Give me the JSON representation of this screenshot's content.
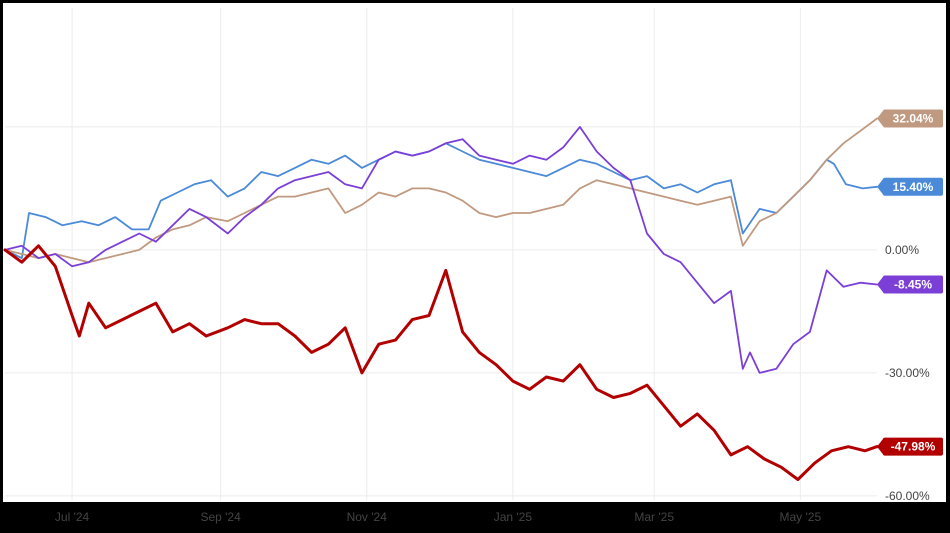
{
  "chart_data": {
    "type": "line",
    "title": "",
    "xlabel": "",
    "ylabel": "",
    "x_ticks": [
      "Jul '24",
      "Sep '24",
      "Nov '24",
      "Jan '25",
      "Mar '25",
      "May '25"
    ],
    "x_tick_dates": [
      "2024-07-01",
      "2024-09-01",
      "2024-11-01",
      "2025-01-01",
      "2025-03-01",
      "2025-05-01"
    ],
    "x_range": [
      "2024-06-03",
      "2025-06-02"
    ],
    "y_ticks": [
      {
        "value": 0,
        "label": "0.00%"
      },
      {
        "value": -30,
        "label": "-30.00%"
      },
      {
        "value": -60,
        "label": "-60.00%"
      }
    ],
    "y_range": [
      -61,
      59
    ],
    "grid": true,
    "series": [
      {
        "color": "#4a8ad9",
        "end_label": "15.40%",
        "points": [
          [
            "2024-06-03",
            0
          ],
          [
            "2024-06-10",
            -2
          ],
          [
            "2024-06-13",
            9
          ],
          [
            "2024-06-20",
            8
          ],
          [
            "2024-06-27",
            6
          ],
          [
            "2024-07-05",
            7
          ],
          [
            "2024-07-12",
            6
          ],
          [
            "2024-07-19",
            8
          ],
          [
            "2024-07-26",
            5
          ],
          [
            "2024-08-02",
            5
          ],
          [
            "2024-08-07",
            12
          ],
          [
            "2024-08-14",
            14
          ],
          [
            "2024-08-21",
            16
          ],
          [
            "2024-08-28",
            17
          ],
          [
            "2024-09-04",
            13
          ],
          [
            "2024-09-11",
            15
          ],
          [
            "2024-09-18",
            19
          ],
          [
            "2024-09-25",
            18
          ],
          [
            "2024-10-02",
            20
          ],
          [
            "2024-10-09",
            22
          ],
          [
            "2024-10-16",
            21
          ],
          [
            "2024-10-23",
            23
          ],
          [
            "2024-10-30",
            20
          ],
          [
            "2024-11-06",
            22
          ],
          [
            "2024-11-13",
            24
          ],
          [
            "2024-11-20",
            23
          ],
          [
            "2024-11-27",
            24
          ],
          [
            "2024-12-04",
            26
          ],
          [
            "2024-12-11",
            24
          ],
          [
            "2024-12-18",
            22
          ],
          [
            "2024-12-25",
            21
          ],
          [
            "2025-01-01",
            20
          ],
          [
            "2025-01-08",
            19
          ],
          [
            "2025-01-15",
            18
          ],
          [
            "2025-01-22",
            20
          ],
          [
            "2025-01-29",
            22
          ],
          [
            "2025-02-05",
            21
          ],
          [
            "2025-02-12",
            19
          ],
          [
            "2025-02-19",
            17
          ],
          [
            "2025-02-26",
            18
          ],
          [
            "2025-03-05",
            15
          ],
          [
            "2025-03-12",
            16
          ],
          [
            "2025-03-19",
            14
          ],
          [
            "2025-03-26",
            16
          ],
          [
            "2025-04-02",
            17
          ],
          [
            "2025-04-07",
            4
          ],
          [
            "2025-04-14",
            10
          ],
          [
            "2025-04-21",
            9
          ],
          [
            "2025-04-28",
            13
          ],
          [
            "2025-05-05",
            17
          ],
          [
            "2025-05-12",
            22
          ],
          [
            "2025-05-15",
            21
          ],
          [
            "2025-05-20",
            16
          ],
          [
            "2025-05-27",
            15
          ],
          [
            "2025-06-02",
            15.4
          ]
        ]
      },
      {
        "color": "#c09a80",
        "end_label": "32.04%",
        "points": [
          [
            "2024-06-03",
            0
          ],
          [
            "2024-06-10",
            -1
          ],
          [
            "2024-06-17",
            -2
          ],
          [
            "2024-06-24",
            -1
          ],
          [
            "2024-07-01",
            -2
          ],
          [
            "2024-07-08",
            -3
          ],
          [
            "2024-07-15",
            -2
          ],
          [
            "2024-07-22",
            -1
          ],
          [
            "2024-07-29",
            0
          ],
          [
            "2024-08-05",
            3
          ],
          [
            "2024-08-12",
            5
          ],
          [
            "2024-08-19",
            6
          ],
          [
            "2024-08-26",
            8
          ],
          [
            "2024-09-04",
            7
          ],
          [
            "2024-09-11",
            9
          ],
          [
            "2024-09-18",
            11
          ],
          [
            "2024-09-25",
            13
          ],
          [
            "2024-10-02",
            13
          ],
          [
            "2024-10-09",
            14
          ],
          [
            "2024-10-16",
            15
          ],
          [
            "2024-10-23",
            9
          ],
          [
            "2024-10-30",
            11
          ],
          [
            "2024-11-06",
            14
          ],
          [
            "2024-11-13",
            13
          ],
          [
            "2024-11-20",
            15
          ],
          [
            "2024-11-27",
            15
          ],
          [
            "2024-12-04",
            14
          ],
          [
            "2024-12-11",
            12
          ],
          [
            "2024-12-18",
            9
          ],
          [
            "2024-12-25",
            8
          ],
          [
            "2025-01-01",
            9
          ],
          [
            "2025-01-08",
            9
          ],
          [
            "2025-01-15",
            10
          ],
          [
            "2025-01-22",
            11
          ],
          [
            "2025-01-29",
            15
          ],
          [
            "2025-02-05",
            17
          ],
          [
            "2025-02-12",
            16
          ],
          [
            "2025-02-19",
            15
          ],
          [
            "2025-02-26",
            14
          ],
          [
            "2025-03-05",
            13
          ],
          [
            "2025-03-12",
            12
          ],
          [
            "2025-03-19",
            11
          ],
          [
            "2025-03-26",
            12
          ],
          [
            "2025-04-02",
            13
          ],
          [
            "2025-04-07",
            1
          ],
          [
            "2025-04-14",
            7
          ],
          [
            "2025-04-21",
            9
          ],
          [
            "2025-04-28",
            13
          ],
          [
            "2025-05-05",
            17
          ],
          [
            "2025-05-12",
            22
          ],
          [
            "2025-05-19",
            26
          ],
          [
            "2025-05-26",
            29
          ],
          [
            "2025-06-02",
            32.04
          ]
        ]
      },
      {
        "color": "#7b3fd8",
        "end_label": "-8.45%",
        "points": [
          [
            "2024-06-03",
            0
          ],
          [
            "2024-06-10",
            1
          ],
          [
            "2024-06-17",
            -2
          ],
          [
            "2024-06-24",
            -1
          ],
          [
            "2024-07-01",
            -4
          ],
          [
            "2024-07-08",
            -3
          ],
          [
            "2024-07-15",
            0
          ],
          [
            "2024-07-22",
            2
          ],
          [
            "2024-07-29",
            4
          ],
          [
            "2024-08-05",
            2
          ],
          [
            "2024-08-12",
            6
          ],
          [
            "2024-08-19",
            10
          ],
          [
            "2024-08-26",
            8
          ],
          [
            "2024-09-04",
            4
          ],
          [
            "2024-09-11",
            8
          ],
          [
            "2024-09-18",
            11
          ],
          [
            "2024-09-25",
            15
          ],
          [
            "2024-10-02",
            17
          ],
          [
            "2024-10-09",
            18
          ],
          [
            "2024-10-16",
            19
          ],
          [
            "2024-10-23",
            16
          ],
          [
            "2024-10-30",
            15
          ],
          [
            "2024-11-06",
            22
          ],
          [
            "2024-11-13",
            24
          ],
          [
            "2024-11-20",
            23
          ],
          [
            "2024-11-27",
            24
          ],
          [
            "2024-12-04",
            26
          ],
          [
            "2024-12-11",
            27
          ],
          [
            "2024-12-18",
            23
          ],
          [
            "2024-12-25",
            22
          ],
          [
            "2025-01-01",
            21
          ],
          [
            "2025-01-08",
            23
          ],
          [
            "2025-01-15",
            22
          ],
          [
            "2025-01-22",
            25
          ],
          [
            "2025-01-29",
            30
          ],
          [
            "2025-02-05",
            24
          ],
          [
            "2025-02-12",
            20
          ],
          [
            "2025-02-19",
            17
          ],
          [
            "2025-02-26",
            4
          ],
          [
            "2025-03-05",
            -1
          ],
          [
            "2025-03-12",
            -3
          ],
          [
            "2025-03-19",
            -8
          ],
          [
            "2025-03-26",
            -13
          ],
          [
            "2025-04-02",
            -10
          ],
          [
            "2025-04-07",
            -29
          ],
          [
            "2025-04-10",
            -25
          ],
          [
            "2025-04-14",
            -30
          ],
          [
            "2025-04-21",
            -29
          ],
          [
            "2025-04-28",
            -23
          ],
          [
            "2025-05-05",
            -20
          ],
          [
            "2025-05-12",
            -5
          ],
          [
            "2025-05-19",
            -9
          ],
          [
            "2025-05-26",
            -8
          ],
          [
            "2025-06-02",
            -8.45
          ]
        ]
      },
      {
        "color": "#b20000",
        "end_label": "-47.98%",
        "points": [
          [
            "2024-06-03",
            0
          ],
          [
            "2024-06-10",
            -3
          ],
          [
            "2024-06-17",
            1
          ],
          [
            "2024-06-24",
            -4
          ],
          [
            "2024-07-01",
            -16
          ],
          [
            "2024-07-04",
            -21
          ],
          [
            "2024-07-08",
            -13
          ],
          [
            "2024-07-15",
            -19
          ],
          [
            "2024-07-22",
            -17
          ],
          [
            "2024-07-29",
            -15
          ],
          [
            "2024-08-05",
            -13
          ],
          [
            "2024-08-12",
            -20
          ],
          [
            "2024-08-19",
            -18
          ],
          [
            "2024-08-26",
            -21
          ],
          [
            "2024-09-04",
            -19
          ],
          [
            "2024-09-11",
            -17
          ],
          [
            "2024-09-18",
            -18
          ],
          [
            "2024-09-25",
            -18
          ],
          [
            "2024-10-02",
            -21
          ],
          [
            "2024-10-09",
            -25
          ],
          [
            "2024-10-16",
            -23
          ],
          [
            "2024-10-23",
            -19
          ],
          [
            "2024-10-30",
            -30
          ],
          [
            "2024-11-06",
            -23
          ],
          [
            "2024-11-13",
            -22
          ],
          [
            "2024-11-20",
            -17
          ],
          [
            "2024-11-27",
            -16
          ],
          [
            "2024-12-04",
            -5
          ],
          [
            "2024-12-11",
            -20
          ],
          [
            "2024-12-18",
            -25
          ],
          [
            "2024-12-25",
            -28
          ],
          [
            "2025-01-01",
            -32
          ],
          [
            "2025-01-08",
            -34
          ],
          [
            "2025-01-15",
            -31
          ],
          [
            "2025-01-22",
            -32
          ],
          [
            "2025-01-29",
            -28
          ],
          [
            "2025-02-05",
            -34
          ],
          [
            "2025-02-12",
            -36
          ],
          [
            "2025-02-19",
            -35
          ],
          [
            "2025-02-26",
            -33
          ],
          [
            "2025-03-05",
            -38
          ],
          [
            "2025-03-12",
            -43
          ],
          [
            "2025-03-19",
            -40
          ],
          [
            "2025-03-26",
            -44
          ],
          [
            "2025-04-02",
            -50
          ],
          [
            "2025-04-09",
            -48
          ],
          [
            "2025-04-16",
            -51
          ],
          [
            "2025-04-23",
            -53
          ],
          [
            "2025-04-30",
            -56
          ],
          [
            "2025-05-07",
            -52
          ],
          [
            "2025-05-14",
            -49
          ],
          [
            "2025-05-21",
            -48
          ],
          [
            "2025-05-28",
            -49
          ],
          [
            "2025-06-02",
            -47.98
          ]
        ]
      }
    ]
  }
}
